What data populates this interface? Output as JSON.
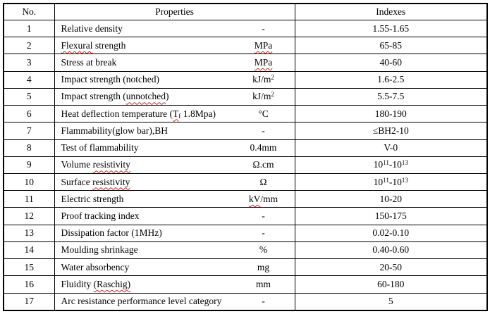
{
  "table": {
    "headers": {
      "no": "No.",
      "properties": "Properties",
      "indexes": "Indexes"
    },
    "rows": [
      {
        "no": "1",
        "property": [
          {
            "t": "Relative density"
          }
        ],
        "unit": [
          {
            "t": "-"
          }
        ],
        "index": [
          {
            "t": "1.55-1.65"
          }
        ]
      },
      {
        "no": "2",
        "property": [
          {
            "t": "Flexural",
            "w": true
          },
          {
            "t": " strength"
          }
        ],
        "unit": [
          {
            "t": "MPa",
            "w": true
          }
        ],
        "index": [
          {
            "t": "65-85"
          }
        ]
      },
      {
        "no": "3",
        "property": [
          {
            "t": "Stress at break"
          }
        ],
        "unit": [
          {
            "t": "MPa",
            "w": true
          }
        ],
        "index": [
          {
            "t": "40-60"
          }
        ]
      },
      {
        "no": "4",
        "property": [
          {
            "t": "Impact strength (notched)"
          }
        ],
        "unit": [
          {
            "t": "kJ/m"
          },
          {
            "t": "2",
            "sup": true
          }
        ],
        "index": [
          {
            "t": "1.6-2.5"
          }
        ]
      },
      {
        "no": "5",
        "property": [
          {
            "t": "Impact strength ("
          },
          {
            "t": "unnotched",
            "w": true
          },
          {
            "t": ")"
          }
        ],
        "unit": [
          {
            "t": "kJ/m"
          },
          {
            "t": "2",
            "sup": true
          }
        ],
        "index": [
          {
            "t": "5.5-7.5"
          }
        ]
      },
      {
        "no": "6",
        "property": [
          {
            "t": "Heat deflection temperature ("
          },
          {
            "t": "T",
            "w": true
          },
          {
            "t": "f",
            "sub": true,
            "w": true
          },
          {
            "t": " 1.8Mpa)"
          }
        ],
        "unit": [
          {
            "t": "°C"
          }
        ],
        "index": [
          {
            "t": "180-190"
          }
        ]
      },
      {
        "no": "7",
        "property": [
          {
            "t": "Flammability(glow bar),BH"
          }
        ],
        "unit": [
          {
            "t": "-"
          }
        ],
        "index": [
          {
            "t": "≤BH2-10"
          }
        ]
      },
      {
        "no": "8",
        "property": [
          {
            "t": "Test of flammability"
          }
        ],
        "unit": [
          {
            "t": "0.4mm"
          }
        ],
        "index": [
          {
            "t": "V-0"
          }
        ]
      },
      {
        "no": "9",
        "property": [
          {
            "t": "Volume "
          },
          {
            "t": "resistivity",
            "w": true
          }
        ],
        "unit": [
          {
            "t": "Ω.cm"
          }
        ],
        "index": [
          {
            "t": "10"
          },
          {
            "t": "11",
            "sup": true
          },
          {
            "t": "-10"
          },
          {
            "t": "13",
            "sup": true
          }
        ]
      },
      {
        "no": "10",
        "property": [
          {
            "t": "Surface "
          },
          {
            "t": "resistivity",
            "w": true
          }
        ],
        "unit": [
          {
            "t": "Ω"
          }
        ],
        "index": [
          {
            "t": "10"
          },
          {
            "t": "11",
            "sup": true
          },
          {
            "t": "-10"
          },
          {
            "t": "13",
            "sup": true
          }
        ]
      },
      {
        "no": "11",
        "property": [
          {
            "t": "Electric strength"
          }
        ],
        "unit": [
          {
            "t": "kV",
            "w": true
          },
          {
            "t": "/mm"
          }
        ],
        "index": [
          {
            "t": "10-20"
          }
        ]
      },
      {
        "no": "12",
        "property": [
          {
            "t": "Proof tracking index"
          }
        ],
        "unit": [
          {
            "t": "-"
          }
        ],
        "index": [
          {
            "t": "150-175"
          }
        ]
      },
      {
        "no": "13",
        "property": [
          {
            "t": "Dissipation factor (1MHz)"
          }
        ],
        "unit": [
          {
            "t": "-"
          }
        ],
        "index": [
          {
            "t": "0.02-0.10"
          }
        ]
      },
      {
        "no": "14",
        "property": [
          {
            "t": "Moulding shrinkage"
          }
        ],
        "unit": [
          {
            "t": "%"
          }
        ],
        "index": [
          {
            "t": "0.40-0.60"
          }
        ]
      },
      {
        "no": "15",
        "property": [
          {
            "t": "Water absorbency"
          }
        ],
        "unit": [
          {
            "t": "mg"
          }
        ],
        "index": [
          {
            "t": "20-50"
          }
        ]
      },
      {
        "no": "16",
        "property": [
          {
            "t": "Fluidity "
          },
          {
            "t": "(Raschig)",
            "w": true
          }
        ],
        "unit": [
          {
            "t": "mm"
          }
        ],
        "index": [
          {
            "t": "60-180"
          }
        ]
      },
      {
        "no": "17",
        "property": [
          {
            "t": "Arc resistance performance level category"
          }
        ],
        "unit": [
          {
            "t": "-"
          }
        ],
        "index": [
          {
            "t": "5"
          }
        ]
      }
    ],
    "colors": {
      "text": "#000000",
      "border": "#000000",
      "spellcheck_squiggle": "#cc2a1e",
      "background": "#ffffff"
    }
  }
}
